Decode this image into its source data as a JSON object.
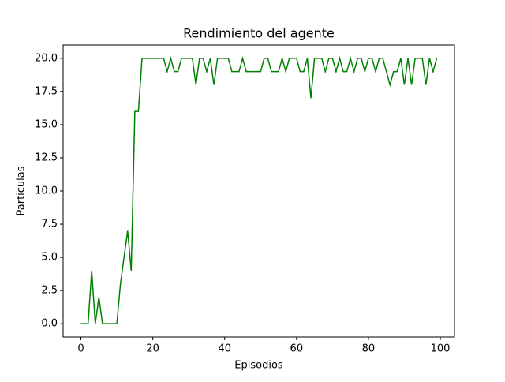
{
  "chart_data": {
    "type": "line",
    "title": "Rendimiento del agente",
    "xlabel": "Episodios",
    "ylabel": "Particulas",
    "x": [
      0,
      1,
      2,
      3,
      4,
      5,
      6,
      7,
      8,
      9,
      10,
      11,
      12,
      13,
      14,
      15,
      16,
      17,
      18,
      19,
      20,
      21,
      22,
      23,
      24,
      25,
      26,
      27,
      28,
      29,
      30,
      31,
      32,
      33,
      34,
      35,
      36,
      37,
      38,
      39,
      40,
      41,
      42,
      43,
      44,
      45,
      46,
      47,
      48,
      49,
      50,
      51,
      52,
      53,
      54,
      55,
      56,
      57,
      58,
      59,
      60,
      61,
      62,
      63,
      64,
      65,
      66,
      67,
      68,
      69,
      70,
      71,
      72,
      73,
      74,
      75,
      76,
      77,
      78,
      79,
      80,
      81,
      82,
      83,
      84,
      85,
      86,
      87,
      88,
      89,
      90,
      91,
      92,
      93,
      94,
      95,
      96,
      97,
      98,
      99
    ],
    "series": [
      {
        "color": "#008000",
        "values": [
          0,
          0,
          0,
          4,
          0,
          2,
          0,
          0,
          0,
          0,
          0,
          3,
          5,
          7,
          4,
          16,
          16,
          20,
          20,
          20,
          20,
          20,
          20,
          20,
          19,
          20,
          19,
          19,
          20,
          20,
          20,
          20,
          18,
          20,
          20,
          19,
          20,
          18,
          20,
          20,
          20,
          20,
          19,
          19,
          19,
          20,
          19,
          19,
          19,
          19,
          19,
          20,
          20,
          19,
          19,
          19,
          20,
          19,
          20,
          20,
          20,
          19,
          19,
          20,
          17,
          20,
          20,
          20,
          19,
          20,
          20,
          19,
          20,
          19,
          19,
          20,
          19,
          20,
          20,
          19,
          20,
          20,
          19,
          20,
          20,
          19,
          18,
          19,
          19,
          20,
          18,
          20,
          18,
          20,
          20,
          20,
          18,
          20,
          19,
          20
        ]
      }
    ],
    "xlim": [
      -4.95,
      103.95
    ],
    "xticks": [
      0,
      20,
      40,
      60,
      80,
      100
    ],
    "ylim": [
      -1,
      21
    ],
    "yticks": [
      {
        "value": 0,
        "label": "0.0"
      },
      {
        "value": 2.5,
        "label": "2.5"
      },
      {
        "value": 5,
        "label": "5.0"
      },
      {
        "value": 7.5,
        "label": "7.5"
      },
      {
        "value": 10,
        "label": "10.0"
      },
      {
        "value": 12.5,
        "label": "12.5"
      },
      {
        "value": 15,
        "label": "15.0"
      },
      {
        "value": 17.5,
        "label": "17.5"
      },
      {
        "value": 20,
        "label": "20.0"
      }
    ]
  }
}
